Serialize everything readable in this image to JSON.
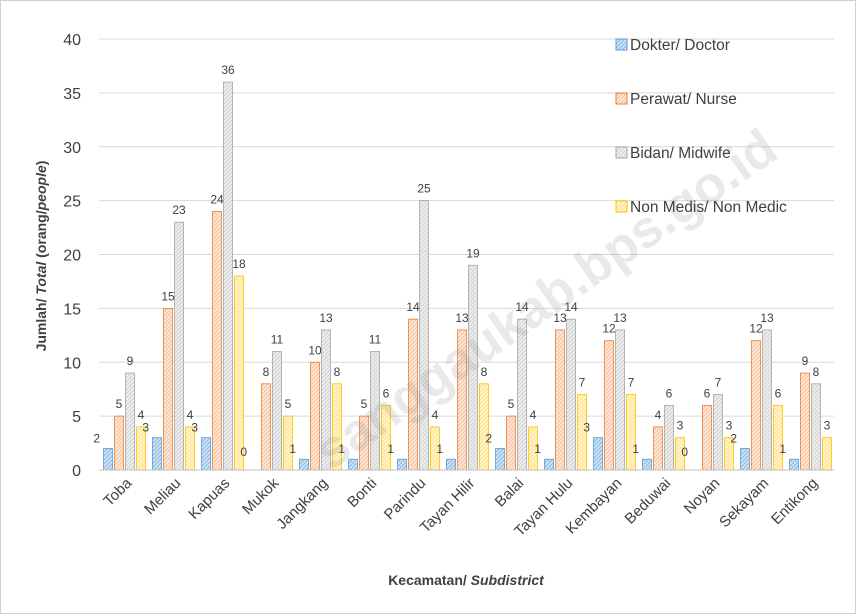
{
  "chart_data": {
    "type": "bar",
    "xlabel": "Kecamatan/",
    "xlabel_italic": "Subdistrict",
    "ylabel_parts": [
      "Jumlah/ ",
      "Total",
      " (orang/",
      "people",
      ")"
    ],
    "ylim": [
      0,
      40
    ],
    "yticks": [
      "0",
      "5",
      "10",
      "15",
      "20",
      "25",
      "30",
      "35",
      "40"
    ],
    "grid": true,
    "legend_position": "right",
    "categories": [
      "Toba",
      "Meliau",
      "Kapuas",
      "Mukok",
      "Jangkang",
      "Bonti",
      "Parindu",
      "Tayan Hilir",
      "Balai",
      "Tayan Hulu",
      "Kembayan",
      "Beduwai",
      "Noyan",
      "Sekayam",
      "Entikong"
    ],
    "series": [
      {
        "name": "Dokter/ Doctor",
        "color": "#9DC3E6",
        "edge": "#5B9BD5",
        "values": [
          2,
          3,
          3,
          0,
          1,
          1,
          1,
          1,
          2,
          1,
          3,
          1,
          0,
          2,
          1
        ]
      },
      {
        "name": "Perawat/ Nurse",
        "color": "#F8CBAD",
        "edge": "#ED7D31",
        "values": [
          5,
          15,
          24,
          8,
          10,
          5,
          14,
          13,
          5,
          13,
          12,
          4,
          6,
          12,
          9
        ]
      },
      {
        "name": "Bidan/ Midwife",
        "color": "#D9D9D9",
        "edge": "#A5A5A5",
        "values": [
          9,
          23,
          36,
          11,
          13,
          11,
          25,
          19,
          14,
          14,
          13,
          6,
          7,
          13,
          8
        ]
      },
      {
        "name": "Non Medis/ Non Medic",
        "color": "#FFE699",
        "edge": "#FFC000",
        "values": [
          4,
          4,
          18,
          5,
          8,
          6,
          4,
          8,
          4,
          7,
          7,
          3,
          3,
          6,
          3
        ]
      }
    ],
    "watermark": "sanggaukab.bps.go.id"
  }
}
